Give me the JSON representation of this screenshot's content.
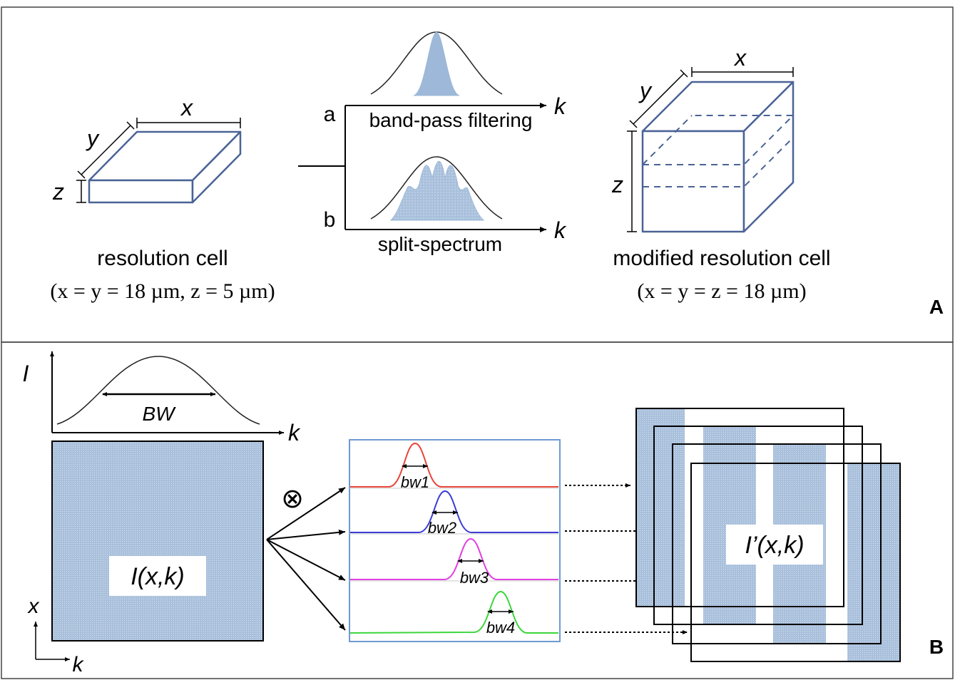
{
  "panel_a": {
    "label": "A",
    "cell_left": {
      "x_label": "x",
      "y_label": "y",
      "z_label": "z",
      "title": "resolution cell",
      "dims": "(x = y = 18 µm, z = 5 µm)"
    },
    "filter": {
      "branch_a": "a",
      "branch_b": "b",
      "caption_a": "band-pass filtering",
      "caption_b": "split-spectrum",
      "axis_label": "k"
    },
    "cell_right": {
      "x_label": "x",
      "y_label": "y",
      "z_label": "z",
      "title": "modified resolution cell",
      "dims": "(x = y = z = 18 µm)"
    }
  },
  "panel_b": {
    "label": "B",
    "spectrum": {
      "y_axis": "I",
      "x_axis": "k",
      "bandwidth": "BW"
    },
    "input_image": {
      "label": "I(x,k)",
      "axis_vertical": "x",
      "axis_horizontal": "k"
    },
    "operator": "⊗",
    "filters": [
      {
        "label": "bw1",
        "color": "#e8463a"
      },
      {
        "label": "bw2",
        "color": "#3b3bd6"
      },
      {
        "label": "bw3",
        "color": "#e23fe0"
      },
      {
        "label": "bw4",
        "color": "#3bd63b"
      }
    ],
    "output_image": {
      "label": "I’(x,k)"
    }
  },
  "colors": {
    "cell_edge": "#4a6396",
    "fill_blue": "#a9c0dc",
    "filter_box": "#6b9bd1"
  }
}
